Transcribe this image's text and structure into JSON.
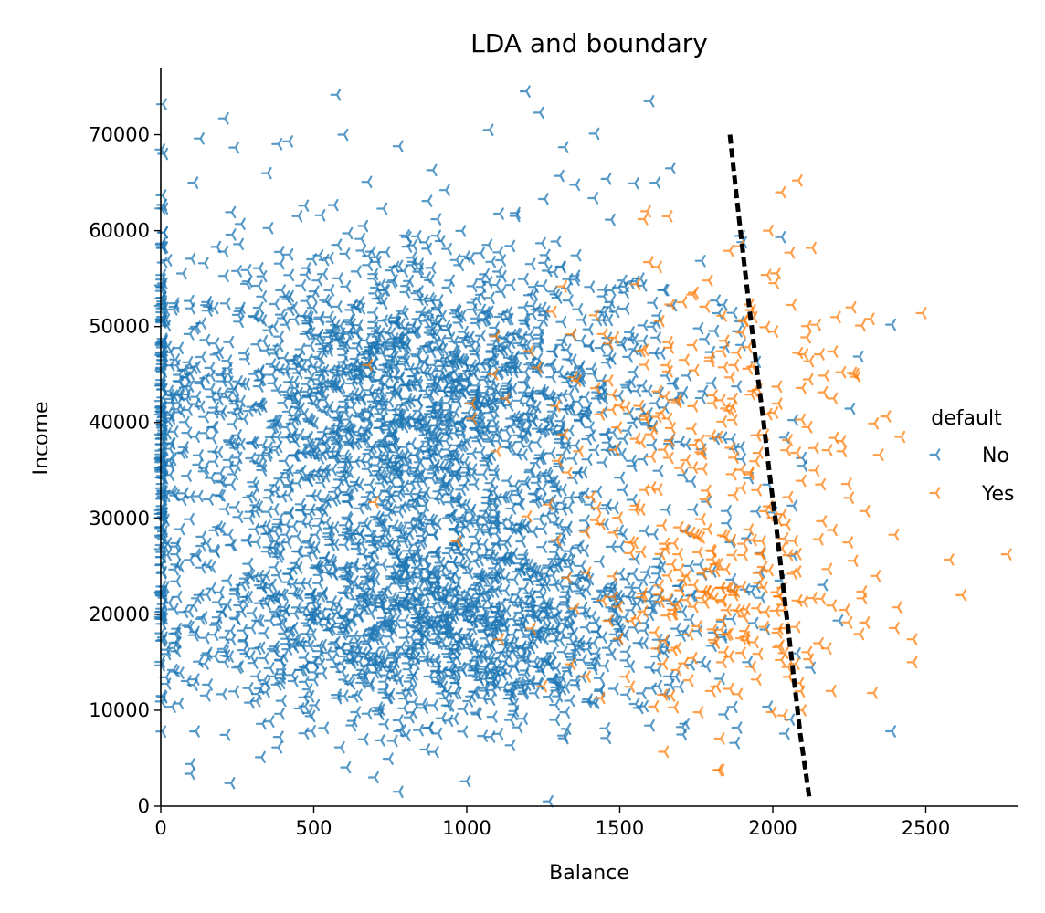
{
  "chart_data": {
    "type": "scatter",
    "title": "LDA and boundary",
    "xlabel": "Balance",
    "ylabel": "Income",
    "xlim": [
      0,
      2800
    ],
    "ylim": [
      0,
      77000
    ],
    "xticks": [
      0,
      500,
      1000,
      1500,
      2000,
      2500
    ],
    "yticks": [
      0,
      10000,
      20000,
      30000,
      40000,
      50000,
      60000,
      70000
    ],
    "grid": false,
    "legend": {
      "title": "default",
      "placement": "right",
      "entries": [
        "No",
        "Yes"
      ]
    },
    "series": [
      {
        "name": "No",
        "color": "#1f77b4",
        "marker": "tri-left",
        "clusters": [
          {
            "x_mean": 820,
            "x_sd": 430,
            "y_mean": 42000,
            "y_sd": 8500,
            "count": 1900
          },
          {
            "x_mean": 900,
            "x_sd": 420,
            "y_mean": 19000,
            "y_sd": 5500,
            "count": 1400
          },
          {
            "x_mean": 0,
            "x_sd": 0,
            "y_mean": 38000,
            "y_sd": 14000,
            "count": 160
          }
        ],
        "points": [
          [
            1600,
            73500
          ],
          [
            1240,
            72300
          ],
          [
            210,
            71700
          ],
          [
            1075,
            70500
          ],
          [
            600,
            70000
          ],
          [
            130,
            69600
          ],
          [
            420,
            69300
          ],
          [
            780,
            68800
          ],
          [
            1320,
            68700
          ],
          [
            1670,
            66500
          ],
          [
            350,
            66000
          ],
          [
            890,
            66300
          ],
          [
            1460,
            65400
          ],
          [
            1620,
            65000
          ],
          [
            110,
            65000
          ],
          [
            2390,
            50200
          ],
          [
            2390,
            7800
          ],
          [
            1270,
            500
          ],
          [
            230,
            2400
          ],
          [
            100,
            4400
          ],
          [
            330,
            5100
          ],
          [
            1000,
            2600
          ],
          [
            700,
            3000
          ],
          [
            780,
            1500
          ],
          [
            1880,
            6600
          ]
        ]
      },
      {
        "name": "Yes",
        "color": "#ff7f0e",
        "marker": "tri-left",
        "clusters": [
          {
            "x_mean": 1850,
            "x_sd": 240,
            "y_mean": 21000,
            "y_sd": 6500,
            "count": 200
          },
          {
            "x_mean": 1800,
            "x_sd": 280,
            "y_mean": 42000,
            "y_sd": 8000,
            "count": 190
          }
        ],
        "points": [
          [
            2030,
            64000
          ],
          [
            1660,
            61500
          ],
          [
            1580,
            61200
          ],
          [
            1990,
            60000
          ],
          [
            2130,
            58200
          ],
          [
            1860,
            57900
          ],
          [
            2260,
            52000
          ],
          [
            2490,
            51400
          ],
          [
            2320,
            50800
          ],
          [
            2200,
            47400
          ],
          [
            2620,
            22000
          ],
          [
            2580,
            25700
          ],
          [
            2460,
            15000
          ],
          [
            2330,
            11800
          ],
          [
            2000,
            9800
          ],
          [
            1090,
            45000
          ],
          [
            1130,
            42500
          ],
          [
            1100,
            37000
          ],
          [
            1300,
            36000
          ],
          [
            680,
            46000
          ],
          [
            970,
            27600
          ],
          [
            700,
            31700
          ],
          [
            1020,
            40400
          ],
          [
            1110,
            17400
          ],
          [
            1200,
            30200
          ],
          [
            2400,
            28300
          ],
          [
            2420,
            38500
          ],
          [
            2230,
            37000
          ],
          [
            2250,
            27500
          ],
          [
            2340,
            24000
          ],
          [
            1250,
            12500
          ],
          [
            1680,
            10300
          ],
          [
            1330,
            23800
          ],
          [
            1720,
            21500
          ],
          [
            1540,
            19300
          ],
          [
            2460,
            17400
          ],
          [
            2120,
            44500
          ],
          [
            1900,
            17500
          ],
          [
            1950,
            13200
          ],
          [
            2140,
            35000
          ]
        ]
      }
    ],
    "boundary": {
      "name": "LDA boundary",
      "color": "#000000",
      "style": "dashed",
      "x": [
        1860,
        1880,
        1905,
        1925,
        1950,
        1970,
        1990,
        2010,
        2030,
        2050,
        2070,
        2090,
        2110,
        2120
      ],
      "y": [
        70000,
        64000,
        57000,
        51500,
        45000,
        40000,
        34500,
        29500,
        24000,
        18500,
        13000,
        7500,
        3000,
        700
      ]
    }
  }
}
